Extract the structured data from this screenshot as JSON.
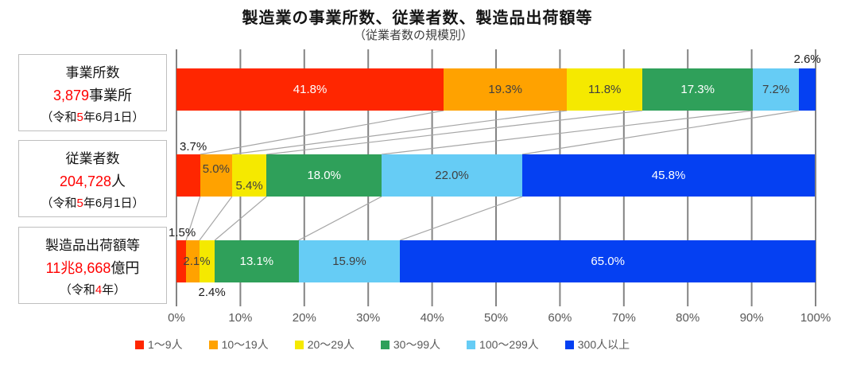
{
  "title": "製造業の事業所数、従業者数、製造品出荷額等",
  "subtitle": "（従業者数の規模別）",
  "accent_red": "#ff0000",
  "boxes": [
    {
      "title": "事業所数",
      "value": "3,879",
      "unit": "事業所",
      "date_prefix": "（令和",
      "date_red": "5",
      "date_suffix": "年6月1日）"
    },
    {
      "title": "従業者数",
      "value": "204,728",
      "unit": "人",
      "date_prefix": "（令和",
      "date_red": "5",
      "date_suffix": "年6月1日）"
    },
    {
      "title": "製造品出荷額等",
      "value": "11兆8,668",
      "unit": "億円",
      "date_prefix": "（令和",
      "date_red": "4",
      "date_suffix": "年）"
    }
  ],
  "chart_data": {
    "type": "bar",
    "stacked": true,
    "orientation": "horizontal",
    "title": "製造業の事業所数、従業者数、製造品出荷額等（従業者数の規模別）",
    "categories": [
      "事業所数",
      "従業者数",
      "製造品出荷額等"
    ],
    "series": [
      {
        "name": "1〜9人",
        "color": "#ff2600",
        "text_color": "#ffffff",
        "values": [
          41.8,
          3.7,
          1.5
        ]
      },
      {
        "name": "10〜19人",
        "color": "#ffa200",
        "text_color": "#404040",
        "values": [
          19.3,
          5.0,
          2.1
        ]
      },
      {
        "name": "20〜29人",
        "color": "#f5e900",
        "text_color": "#404040",
        "values": [
          11.8,
          5.4,
          2.4
        ]
      },
      {
        "name": "30〜99人",
        "color": "#2fa05a",
        "text_color": "#ffffff",
        "values": [
          17.3,
          18.0,
          13.1
        ]
      },
      {
        "name": "100〜299人",
        "color": "#66ccf5",
        "text_color": "#404040",
        "values": [
          7.2,
          22.0,
          15.9
        ]
      },
      {
        "name": "300人以上",
        "color": "#0540f2",
        "text_color": "#ffffff",
        "values": [
          2.6,
          45.8,
          65.0
        ]
      }
    ],
    "x_ticks": [
      "0%",
      "10%",
      "20%",
      "30%",
      "40%",
      "50%",
      "60%",
      "70%",
      "80%",
      "90%",
      "100%"
    ],
    "xlim": [
      0,
      100
    ],
    "grid": true,
    "grid_color": "#848484",
    "connector_color": "#a6a6a6",
    "outside_label_color": "#1a1a1a",
    "legend_position": "bottom"
  }
}
